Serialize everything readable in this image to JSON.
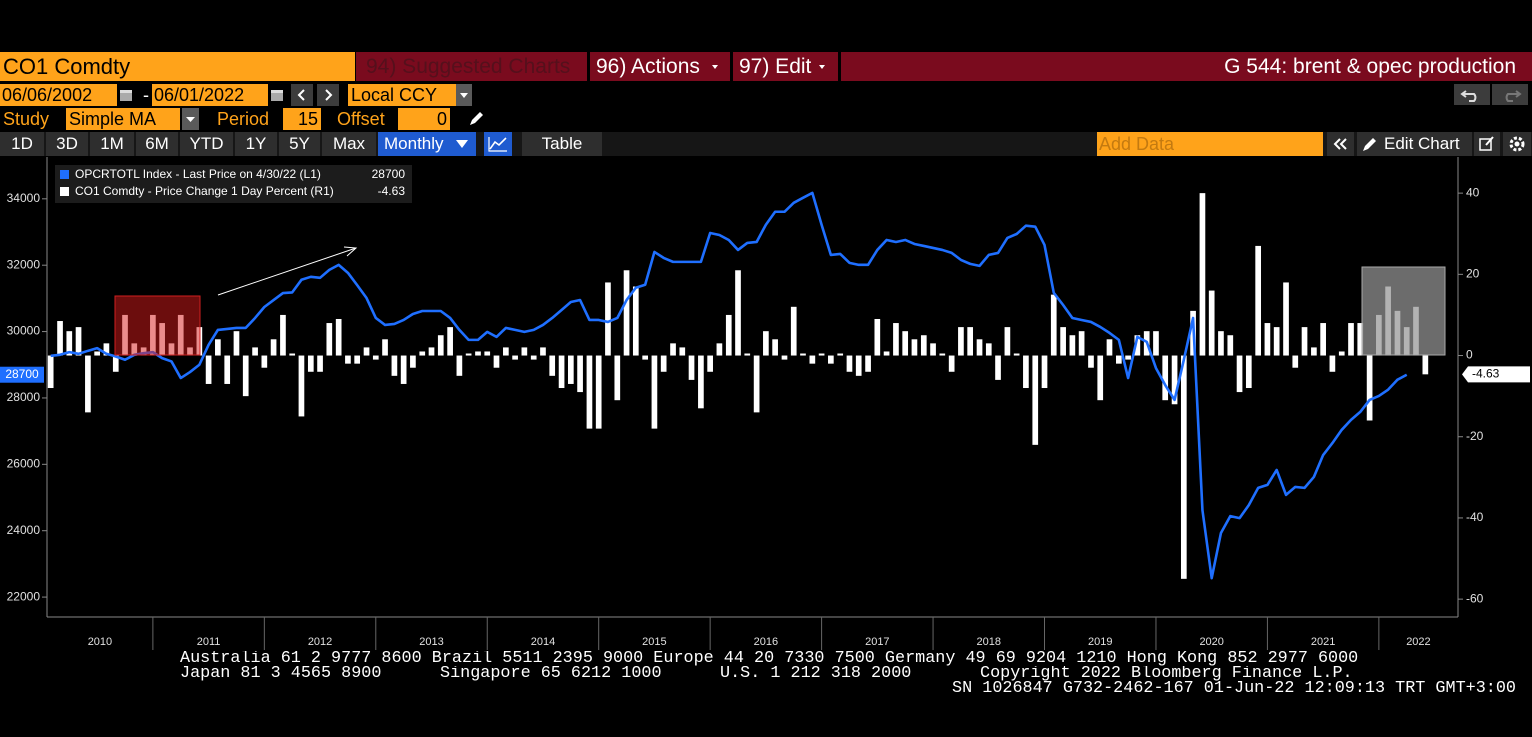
{
  "header": {
    "security": "CO1 Comdty",
    "menu": [
      "94) Suggested Charts",
      "96) Actions",
      "97) Edit"
    ],
    "chart_name": "G 544: brent & opec production"
  },
  "controls": {
    "start_date": "06/06/2002",
    "separator": "-",
    "end_date": "06/01/2022",
    "currency": "Local CCY",
    "study_label": "Study",
    "study": "Simple MA",
    "period_label": "Period",
    "period": 15,
    "offset_label": "Offset",
    "offset": 0
  },
  "range_buttons": [
    "1D",
    "3D",
    "1M",
    "6M",
    "YTD",
    "1Y",
    "5Y",
    "Max"
  ],
  "frequency": "Monthly",
  "table_button": "Table",
  "add_data": "Add Data",
  "edit_chart": "Edit Chart",
  "chart_data": {
    "type": "combo",
    "legend": "upper left",
    "x": [
      2010.083,
      2010.167,
      2010.25,
      2010.333,
      2010.417,
      2010.5,
      2010.583,
      2010.667,
      2010.75,
      2010.833,
      2010.917,
      2011,
      2011.083,
      2011.167,
      2011.25,
      2011.333,
      2011.417,
      2011.5,
      2011.583,
      2011.667,
      2011.75,
      2011.833,
      2011.917,
      2012,
      2012.083,
      2012.167,
      2012.25,
      2012.333,
      2012.417,
      2012.5,
      2012.583,
      2012.667,
      2012.75,
      2012.833,
      2012.917,
      2013,
      2013.083,
      2013.167,
      2013.25,
      2013.333,
      2013.417,
      2013.5,
      2013.583,
      2013.667,
      2013.75,
      2013.833,
      2013.917,
      2014,
      2014.083,
      2014.167,
      2014.25,
      2014.333,
      2014.417,
      2014.5,
      2014.583,
      2014.667,
      2014.75,
      2014.833,
      2014.917,
      2015,
      2015.083,
      2015.167,
      2015.25,
      2015.333,
      2015.417,
      2015.5,
      2015.583,
      2015.667,
      2015.75,
      2015.833,
      2015.917,
      2016,
      2016.083,
      2016.167,
      2016.25,
      2016.333,
      2016.417,
      2016.5,
      2016.583,
      2016.667,
      2016.75,
      2016.833,
      2016.917,
      2017,
      2017.083,
      2017.167,
      2017.25,
      2017.333,
      2017.417,
      2017.5,
      2017.583,
      2017.667,
      2017.75,
      2017.833,
      2017.917,
      2018,
      2018.083,
      2018.167,
      2018.25,
      2018.333,
      2018.417,
      2018.5,
      2018.583,
      2018.667,
      2018.75,
      2018.833,
      2018.917,
      2019,
      2019.083,
      2019.167,
      2019.25,
      2019.333,
      2019.417,
      2019.5,
      2019.583,
      2019.667,
      2019.75,
      2019.833,
      2019.917,
      2020,
      2020.083,
      2020.167,
      2020.25,
      2020.333,
      2020.417,
      2020.5,
      2020.583,
      2020.667,
      2020.75,
      2020.833,
      2020.917,
      2021,
      2021.083,
      2021.167,
      2021.25,
      2021.333,
      2021.417,
      2021.5,
      2021.583,
      2021.667,
      2021.75,
      2021.833,
      2021.917,
      2022,
      2022.083,
      2022.167,
      2022.25,
      2022.333,
      2022.417
    ],
    "series": [
      {
        "name": "OPCRTOTL Index - Last Price on 4/30/22 (L1)",
        "type": "line",
        "axis": "y",
        "color": "#1f6fff",
        "values": [
          29270,
          29300,
          29380,
          29330,
          29420,
          29500,
          29330,
          29250,
          29150,
          29300,
          29350,
          29380,
          29200,
          29100,
          28600,
          28780,
          29000,
          29600,
          30050,
          30080,
          30110,
          30110,
          30410,
          30740,
          30950,
          31160,
          31180,
          31560,
          31650,
          31620,
          31860,
          32010,
          31770,
          31400,
          31010,
          30410,
          30200,
          30230,
          30350,
          30530,
          30620,
          30620,
          30620,
          30410,
          30050,
          29750,
          29750,
          29990,
          29840,
          30110,
          30050,
          29990,
          30050,
          30200,
          30410,
          30650,
          30890,
          30950,
          30350,
          30350,
          30290,
          30410,
          30950,
          31320,
          31410,
          32400,
          32220,
          32100,
          32100,
          32100,
          32100,
          32970,
          32910,
          32760,
          32460,
          32670,
          32700,
          33220,
          33610,
          33610,
          33880,
          34030,
          34180,
          33220,
          32310,
          32340,
          32070,
          32010,
          32010,
          32460,
          32760,
          32700,
          32760,
          32640,
          32580,
          32520,
          32460,
          32370,
          32160,
          32040,
          31980,
          32310,
          32370,
          32820,
          32940,
          33190,
          33160,
          32610,
          31170,
          30800,
          30410,
          30350,
          30290,
          30140,
          29960,
          29750,
          28600,
          29840,
          29690,
          28900,
          28390,
          27940,
          29150,
          30410,
          24620,
          22570,
          23930,
          24440,
          24380,
          24770,
          25290,
          25380,
          25830,
          25080,
          25320,
          25290,
          25620,
          26280,
          26640,
          27040,
          27340,
          27580,
          27940,
          28060,
          28250,
          28550,
          28700,
          null,
          null
        ]
      },
      {
        "name": "CO1 Comdty - Price Change 1 Day Percent (R1)",
        "type": "bar",
        "axis": "y2",
        "color": "#ffffff",
        "values": [
          -8,
          8.5,
          6,
          7,
          -14,
          1,
          3,
          -4,
          10,
          3,
          2,
          10,
          8,
          3,
          10,
          2,
          7,
          -7,
          4,
          -7,
          6,
          -10,
          2,
          -3,
          4,
          10,
          0.5,
          -15,
          -4,
          -4,
          8,
          9,
          -2,
          -2,
          2,
          -1,
          4,
          -5,
          -7,
          -3,
          1,
          2,
          5,
          7,
          -5,
          0.5,
          1,
          1,
          -3,
          2,
          -1,
          2,
          -1,
          2,
          -5,
          -8,
          -7,
          -9,
          -18,
          -18,
          18,
          -11,
          21,
          17,
          -1,
          -18,
          -4,
          3,
          2,
          -6,
          -13,
          -4,
          3,
          10,
          21,
          0.5,
          -14,
          6,
          4,
          -1,
          12,
          0.5,
          -2,
          0.5,
          -2,
          0.5,
          -4,
          -5,
          -4,
          9,
          1,
          8,
          6,
          4,
          5,
          3,
          0.5,
          -4,
          7,
          7,
          4,
          3,
          -6,
          7,
          0.5,
          -8,
          -22,
          -8,
          15,
          7,
          5,
          6,
          -3,
          -11,
          4,
          -2,
          -1,
          5,
          6,
          6,
          -11,
          -12,
          -55,
          11,
          40,
          16,
          6,
          5,
          -9,
          -8,
          27,
          8,
          7,
          18,
          -3,
          7,
          2,
          8,
          -4,
          1,
          8,
          8,
          -16,
          10,
          17,
          11,
          7,
          12,
          -4.63
        ]
      }
    ],
    "xlim": [
      2010.05,
      2022.71
    ],
    "xticks": [
      2010,
      2011,
      2012,
      2013,
      2014,
      2015,
      2016,
      2017,
      2018,
      2019,
      2020,
      2021,
      2022
    ],
    "ylim": [
      21400,
      35260
    ],
    "yticks": [
      22000,
      24000,
      26000,
      28000,
      30000,
      32000,
      34000
    ],
    "y2lim": [
      -64.4,
      48.9
    ],
    "y2ticks": [
      -60,
      -40,
      -20,
      0,
      20,
      40
    ]
  },
  "footer": {
    "line1": "Australia 61 2 9777 8600 Brazil 5511 2395 9000 Europe 44 20 7330 7500 Germany 49 69 9204 1210 Hong Kong 852 2977 6000",
    "line2": [
      "Japan 81 3 4565 8900",
      "Singapore 65 6212 1000",
      "U.S. 1 212 318 2000",
      "Copyright 2022 Bloomberg Finance L.P."
    ],
    "line3": "SN 1026847 G732-2462-167 01-Jun-22 12:09:13 TRT  GMT+3:00"
  }
}
